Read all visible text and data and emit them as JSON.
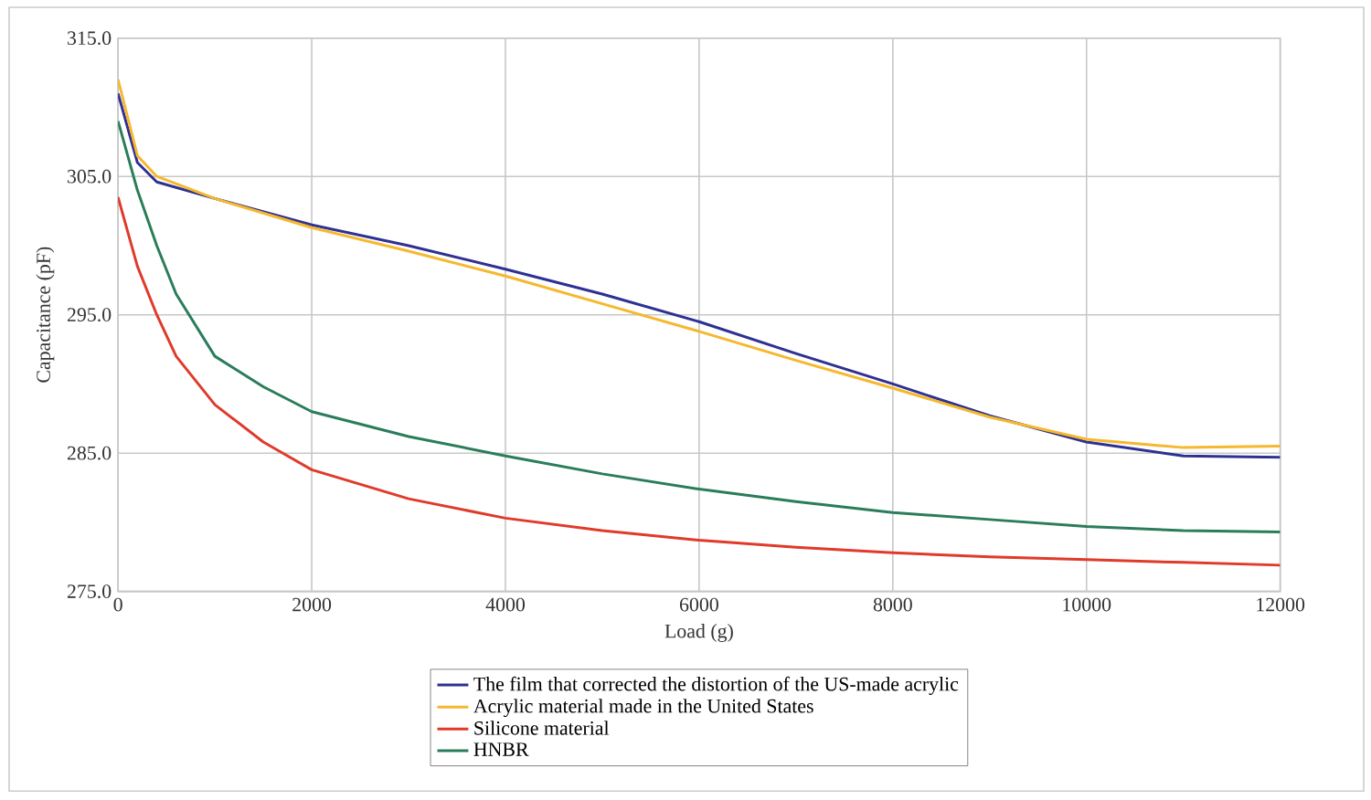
{
  "chart_data": {
    "type": "line",
    "xlabel": "Load (g)",
    "ylabel": "Capacitance (pF)",
    "xlim": [
      0,
      12000
    ],
    "ylim": [
      275,
      315
    ],
    "xticks": [
      0,
      2000,
      4000,
      6000,
      8000,
      10000,
      12000
    ],
    "yticks": [
      {
        "value": 275,
        "label": "275.0"
      },
      {
        "value": 285,
        "label": "285.0"
      },
      {
        "value": 295,
        "label": "295.0"
      },
      {
        "value": 305,
        "label": "305.0"
      },
      {
        "value": 315,
        "label": "315.0"
      }
    ],
    "grid": true,
    "legend": "bottom",
    "marker": "none",
    "line_style": "solid",
    "series": [
      {
        "name": "The film that corrected the distortion of the US-made acrylic",
        "color": "#2e3192",
        "x": [
          0,
          200,
          400,
          1000,
          2000,
          3000,
          4000,
          5000,
          6000,
          7000,
          8000,
          9000,
          10000,
          11000,
          12000
        ],
        "values": [
          311,
          306,
          304.6,
          303.4,
          301.5,
          300,
          298.3,
          296.5,
          294.5,
          292.2,
          290,
          287.7,
          285.8,
          284.8,
          284.7
        ]
      },
      {
        "name": "Acrylic material made in the United States",
        "color": "#f5b82e",
        "x": [
          0,
          200,
          400,
          1000,
          2000,
          3000,
          4000,
          5000,
          6000,
          7000,
          8000,
          9000,
          10000,
          11000,
          12000
        ],
        "values": [
          312,
          306.5,
          305,
          303.4,
          301.3,
          299.6,
          297.8,
          295.8,
          293.8,
          291.7,
          289.7,
          287.6,
          286,
          285.4,
          285.5
        ]
      },
      {
        "name": "Silicone material",
        "color": "#e03a2a",
        "x": [
          0,
          200,
          400,
          600,
          1000,
          1500,
          2000,
          3000,
          4000,
          5000,
          6000,
          7000,
          8000,
          9000,
          10000,
          11000,
          12000
        ],
        "values": [
          303.5,
          298.5,
          295,
          292,
          288.5,
          285.8,
          283.8,
          281.7,
          280.3,
          279.4,
          278.7,
          278.2,
          277.8,
          277.5,
          277.3,
          277.1,
          276.9
        ]
      },
      {
        "name": "HNBR",
        "color": "#2a7d5a",
        "x": [
          0,
          200,
          400,
          600,
          1000,
          1500,
          2000,
          3000,
          4000,
          5000,
          6000,
          7000,
          8000,
          9000,
          10000,
          11000,
          12000
        ],
        "values": [
          309,
          304,
          300,
          296.5,
          292,
          289.8,
          288,
          286.2,
          284.8,
          283.5,
          282.4,
          281.5,
          280.7,
          280.2,
          279.7,
          279.4,
          279.3
        ]
      }
    ]
  }
}
